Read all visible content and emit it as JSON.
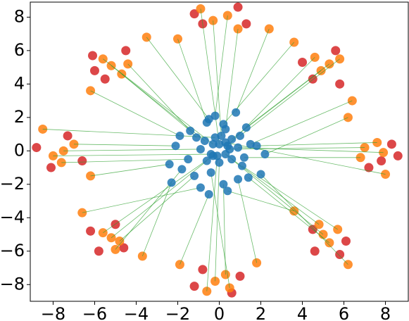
{
  "chart_data": {
    "type": "scatter",
    "xlim": [
      -9.1,
      9.1
    ],
    "ylim": [
      -9.0,
      8.9
    ],
    "xticks": [
      {
        "value": -8,
        "label": "−8"
      },
      {
        "value": -6,
        "label": "−6"
      },
      {
        "value": -4,
        "label": "−4"
      },
      {
        "value": -2,
        "label": "−2"
      },
      0,
      2,
      4,
      6,
      8
    ],
    "yticks": [
      {
        "value": -8,
        "label": "−8"
      },
      {
        "value": -6,
        "label": "−6"
      },
      {
        "value": -4,
        "label": "−4"
      },
      {
        "value": -2,
        "label": "−2"
      },
      0,
      2,
      4,
      6,
      8
    ],
    "link_color": "#2ca02c",
    "series": [
      {
        "color": "#d62728",
        "x": [
          7.8,
          8.3,
          7.2,
          8.6,
          4.0,
          5.8,
          4.5,
          5.6,
          -1.2,
          1.3,
          -0.8,
          0.9,
          -6.0,
          -5.5,
          -4.5,
          -6.1,
          -8.8,
          -6.6,
          -8.1,
          -7.3,
          -5.8,
          -4.6,
          -6.2,
          -5.0,
          -1.2,
          0.6,
          -0.8,
          1.0,
          4.6,
          6.1,
          4.5,
          5.8
        ],
        "y": [
          -0.6,
          0.4,
          -1.0,
          -0.3,
          5.3,
          4.0,
          4.3,
          6.0,
          8.2,
          7.6,
          7.6,
          8.6,
          4.8,
          4.3,
          6.0,
          5.7,
          0.2,
          -0.6,
          -1.0,
          0.9,
          -6.0,
          -5.8,
          -4.8,
          -4.4,
          -8.1,
          -8.5,
          -7.1,
          -7.5,
          -6.0,
          -5.4,
          -4.7,
          -6.2
        ]
      },
      {
        "color": "#ff7f0e",
        "x": [
          7.0,
          7.6,
          6.8,
          7.9,
          6.2,
          8.0,
          4.9,
          5.3,
          4.6,
          5.8,
          3.6,
          6.4,
          -0.3,
          0.4,
          0.9,
          -0.9,
          -2.0,
          2.4,
          -5.2,
          -4.7,
          -5.6,
          -4.4,
          -6.2,
          -3.5,
          -7.5,
          -7.0,
          -8.0,
          -7.6,
          -6.2,
          -8.5,
          -5.2,
          -4.8,
          -5.6,
          -5.0,
          -6.6,
          -3.7,
          -0.2,
          0.3,
          -0.6,
          0.5,
          1.8,
          -1.9,
          5.0,
          5.3,
          4.8,
          5.7,
          6.2,
          3.6
        ],
        "y": [
          0.2,
          0.5,
          -0.4,
          -0.1,
          2.0,
          -1.4,
          4.8,
          5.2,
          5.6,
          5.5,
          6.5,
          3.0,
          7.8,
          8.1,
          7.3,
          8.5,
          6.7,
          7.3,
          5.1,
          4.6,
          5.5,
          5.2,
          3.6,
          6.8,
          0.0,
          0.4,
          -0.3,
          -0.7,
          -1.5,
          1.3,
          -5.2,
          -5.4,
          -4.9,
          -5.9,
          -3.7,
          -6.3,
          -7.8,
          -7.4,
          -8.4,
          -8.2,
          -6.7,
          -6.8,
          -5.0,
          -5.5,
          -4.4,
          -4.7,
          -6.8,
          -3.6
        ]
      },
      {
        "color": "#1f77b4",
        "x": [
          0.5,
          1.8,
          1.2,
          0.9,
          2.2,
          0.3,
          0.6,
          1.3,
          0.4,
          1.0,
          0.2,
          1.5,
          0.1,
          -0.2,
          0.3,
          0.0,
          -0.6,
          0.8,
          -0.7,
          -1.4,
          -0.3,
          -1.1,
          -1.9,
          -0.5,
          -0.9,
          -2.1,
          -0.4,
          -1.5,
          -2.4,
          -0.2,
          -0.6,
          -1.2,
          -0.3,
          -1.8,
          -0.9,
          -2.3,
          0.0,
          0.2,
          -0.1,
          -0.4,
          0.9,
          -0.5,
          0.6,
          1.4,
          0.3,
          1.1,
          2.0,
          0.4
        ],
        "y": [
          0.1,
          0.3,
          -0.4,
          0.2,
          -0.2,
          0.5,
          0.7,
          1.4,
          0.3,
          0.9,
          1.6,
          0.4,
          0.9,
          2.1,
          1.3,
          0.4,
          1.7,
          2.3,
          0.6,
          1.2,
          0.4,
          0.8,
          0.9,
          1.9,
          0.1,
          0.3,
          -0.2,
          -0.5,
          -0.8,
          0.8,
          -0.6,
          -1.5,
          -0.3,
          -1.1,
          -2.2,
          -1.9,
          -0.7,
          -2.0,
          -0.3,
          -1.3,
          -1.7,
          -2.6,
          -0.5,
          -1.6,
          -0.2,
          -0.9,
          -1.4,
          -2.4
        ]
      }
    ]
  }
}
